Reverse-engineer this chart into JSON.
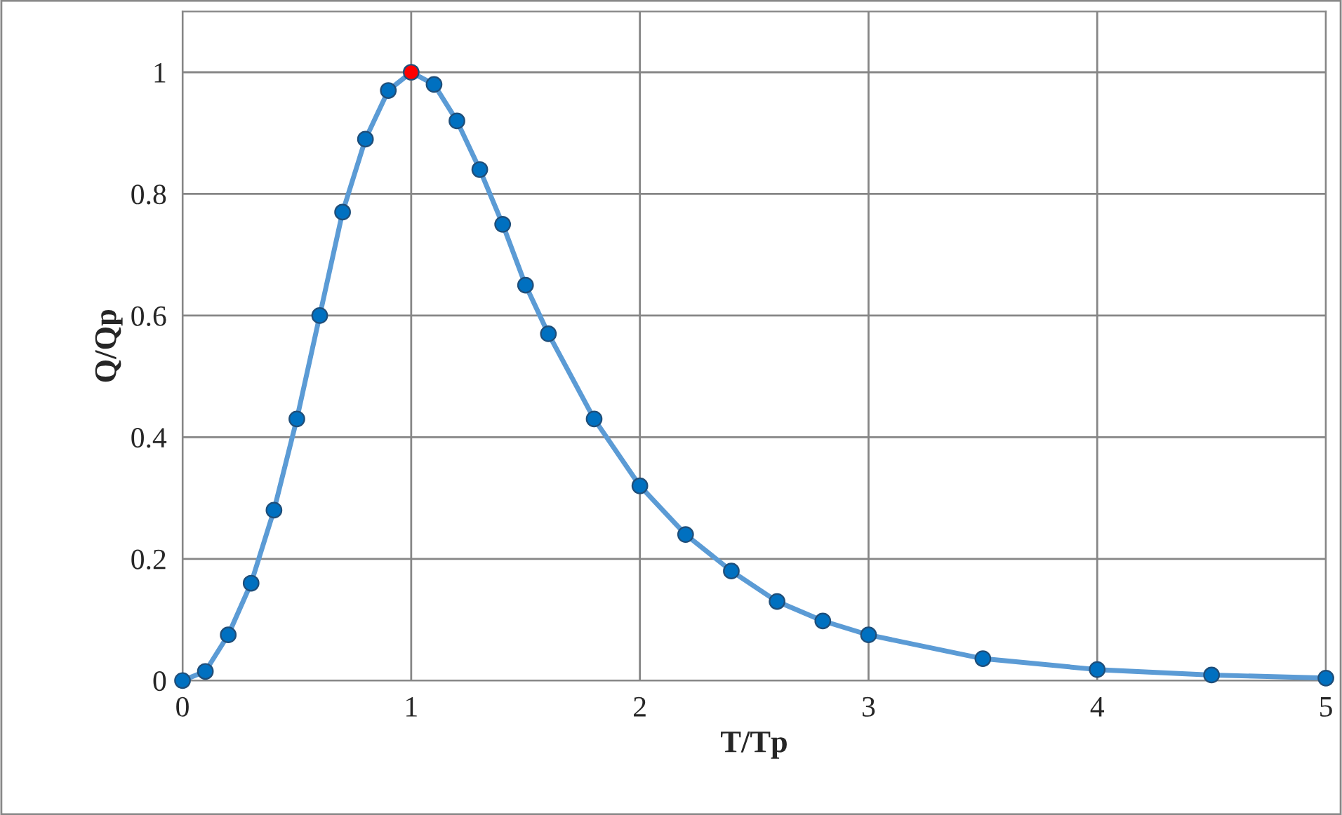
{
  "chart_data": {
    "type": "line",
    "xlabel": "T/Tp",
    "ylabel": "Q/Qp",
    "x": [
      0,
      0.1,
      0.2,
      0.3,
      0.4,
      0.5,
      0.6,
      0.7,
      0.8,
      0.9,
      1.0,
      1.1,
      1.2,
      1.3,
      1.4,
      1.5,
      1.6,
      1.8,
      2.0,
      2.2,
      2.4,
      2.6,
      2.8,
      3.0,
      3.5,
      4.0,
      4.5,
      5.0
    ],
    "series": [
      {
        "color": "#5b9bd5",
        "colors": [
          "#0070c0",
          "#0070c0",
          "#0070c0",
          "#0070c0",
          "#0070c0",
          "#0070c0",
          "#0070c0",
          "#0070c0",
          "#0070c0",
          "#0070c0",
          "#ff0000",
          "#0070c0",
          "#0070c0",
          "#0070c0",
          "#0070c0",
          "#0070c0",
          "#0070c0",
          "#0070c0",
          "#0070c0",
          "#0070c0",
          "#0070c0",
          "#0070c0",
          "#0070c0",
          "#0070c0",
          "#0070c0",
          "#0070c0",
          "#0070c0",
          "#0070c0"
        ],
        "values": [
          0,
          0.015,
          0.075,
          0.16,
          0.28,
          0.43,
          0.6,
          0.77,
          0.89,
          0.97,
          1.0,
          0.98,
          0.92,
          0.84,
          0.75,
          0.65,
          0.57,
          0.43,
          0.32,
          0.24,
          0.18,
          0.13,
          0.098,
          0.075,
          0.036,
          0.018,
          0.009,
          0.004
        ]
      }
    ],
    "xlim": [
      0,
      5
    ],
    "xticks": [
      0,
      1,
      2,
      3,
      4,
      5
    ],
    "ylim": [
      0,
      1.1
    ],
    "yticks": [
      0,
      0.2,
      0.4,
      0.6,
      0.8,
      1
    ],
    "grid": true,
    "marker": "circle",
    "line_style": "solid"
  }
}
